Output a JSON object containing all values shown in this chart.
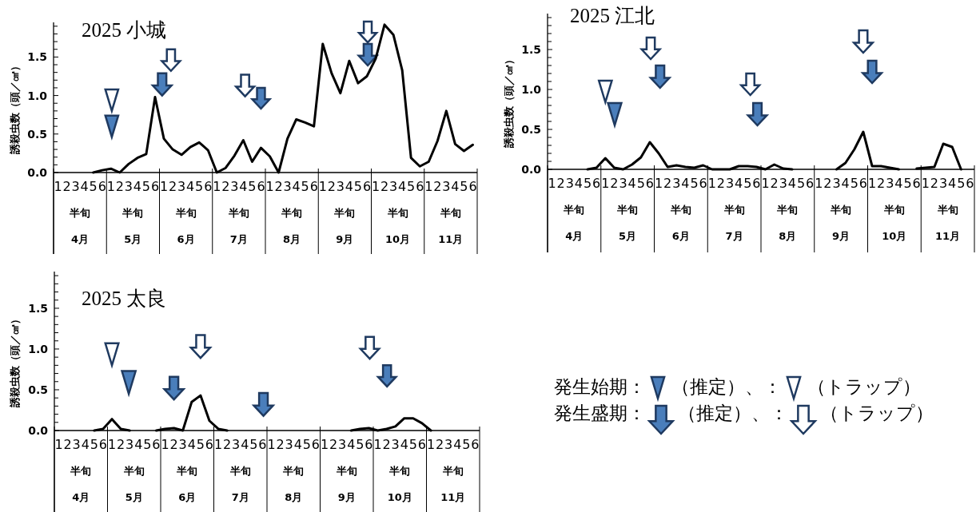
{
  "chart_data": [
    {
      "type": "line",
      "title": "2025 小城",
      "ylabel": "誘殺虫数（頭／㎠）",
      "categories": [
        "1",
        "2",
        "3",
        "4",
        "5",
        "6",
        "1",
        "2",
        "3",
        "4",
        "5",
        "6",
        "1",
        "2",
        "3",
        "4",
        "5",
        "6",
        "1",
        "2",
        "3",
        "4",
        "5",
        "6",
        "1",
        "2",
        "3",
        "4",
        "5",
        "6",
        "1",
        "2",
        "3",
        "4",
        "5",
        "6",
        "1",
        "2",
        "3",
        "4",
        "5",
        "6",
        "1",
        "2",
        "3",
        "4",
        "5",
        "6"
      ],
      "annotations": [
        "半旬",
        "半旬",
        "半旬",
        "半旬",
        "半旬",
        "半旬",
        "半旬",
        "半旬",
        "4月",
        "5月",
        "6月",
        "7月",
        "8月",
        "9月",
        "10月",
        "11月"
      ],
      "series": [
        {
          "color": "#000000",
          "values": [
            null,
            null,
            null,
            null,
            0,
            0.03,
            0.05,
            0,
            0.11,
            0.19,
            0.24,
            0.98,
            0.44,
            0.3,
            0.23,
            0.33,
            0.39,
            0.29,
            0,
            0.06,
            0.22,
            0.42,
            0.14,
            0.32,
            0.21,
            0,
            0.44,
            0.69,
            0.65,
            0.6,
            1.67,
            1.29,
            1.03,
            1.45,
            1.16,
            1.25,
            1.48,
            1.92,
            1.79,
            1.33,
            0.19,
            0.08,
            0.14,
            0.41,
            0.8,
            0.37,
            0.28,
            0.36
          ]
        }
      ],
      "ylim": [
        0,
        1.95
      ],
      "yticks": [
        {
          "value": 0,
          "label": "0.0"
        },
        {
          "value": 0.1,
          "label": null
        },
        {
          "value": 0.2,
          "label": null
        },
        {
          "value": 0.3,
          "label": null
        },
        {
          "value": 0.4,
          "label": null
        },
        {
          "value": 0.5,
          "label": "0.5"
        },
        {
          "value": 0.6,
          "label": null
        },
        {
          "value": 0.7,
          "label": null
        },
        {
          "value": 0.8,
          "label": null
        },
        {
          "value": 0.9,
          "label": null
        },
        {
          "value": 1.0,
          "label": "1.0"
        },
        {
          "value": 1.1,
          "label": null
        },
        {
          "value": 1.2,
          "label": null
        },
        {
          "value": 1.3,
          "label": null
        },
        {
          "value": 1.4,
          "label": null
        },
        {
          "value": 1.5,
          "label": "1.5"
        },
        {
          "value": 1.6,
          "label": null
        },
        {
          "value": 1.7,
          "label": null
        },
        {
          "value": 1.8,
          "label": null
        },
        {
          "value": 1.9,
          "label": null
        }
      ]
    },
    {
      "type": "line",
      "title": "2025 江北",
      "ylabel": "誘殺虫数（頭／㎠）",
      "categories": [
        "1",
        "2",
        "3",
        "4",
        "5",
        "6",
        "1",
        "2",
        "3",
        "4",
        "5",
        "6",
        "1",
        "2",
        "3",
        "4",
        "5",
        "6",
        "1",
        "2",
        "3",
        "4",
        "5",
        "6",
        "1",
        "2",
        "3",
        "4",
        "5",
        "6",
        "1",
        "2",
        "3",
        "4",
        "5",
        "6",
        "1",
        "2",
        "3",
        "4",
        "5",
        "6",
        "1",
        "2",
        "3",
        "4",
        "5",
        "6"
      ],
      "annotations": [
        "半旬",
        "半旬",
        "半旬",
        "半旬",
        "半旬",
        "半旬",
        "半旬",
        "半旬",
        "4月",
        "5月",
        "6月",
        "7月",
        "8月",
        "9月",
        "10月",
        "11月"
      ],
      "series": [
        {
          "color": "#000000",
          "values": [
            null,
            null,
            null,
            null,
            0,
            0.02,
            0.14,
            0.02,
            0,
            0.06,
            0.15,
            0.34,
            0.2,
            0.03,
            0.05,
            0.03,
            0.02,
            0.05,
            0,
            0,
            0,
            0.04,
            0.04,
            0.03,
            0,
            0.06,
            0.01,
            0,
            null,
            null,
            null,
            null,
            0,
            0.08,
            0.25,
            0.47,
            0.04,
            0.04,
            0.02,
            0,
            null,
            0.01,
            0.02,
            0.03,
            0.32,
            0.28,
            0,
            null
          ]
        }
      ],
      "ylim": [
        0,
        1.95
      ],
      "yticks": [
        {
          "value": 0,
          "label": "0.0"
        },
        {
          "value": 0.1,
          "label": null
        },
        {
          "value": 0.2,
          "label": null
        },
        {
          "value": 0.3,
          "label": null
        },
        {
          "value": 0.4,
          "label": null
        },
        {
          "value": 0.5,
          "label": "0.5"
        },
        {
          "value": 0.6,
          "label": null
        },
        {
          "value": 0.7,
          "label": null
        },
        {
          "value": 0.8,
          "label": null
        },
        {
          "value": 0.9,
          "label": null
        },
        {
          "value": 1.0,
          "label": "1.0"
        },
        {
          "value": 1.1,
          "label": null
        },
        {
          "value": 1.2,
          "label": null
        },
        {
          "value": 1.3,
          "label": null
        },
        {
          "value": 1.4,
          "label": null
        },
        {
          "value": 1.5,
          "label": "1.5"
        },
        {
          "value": 1.6,
          "label": null
        },
        {
          "value": 1.7,
          "label": null
        },
        {
          "value": 1.8,
          "label": null
        },
        {
          "value": 1.9,
          "label": null
        }
      ]
    },
    {
      "type": "line",
      "title": "2025 太良",
      "ylabel": "誘殺虫数（頭／㎠）",
      "categories": [
        "1",
        "2",
        "3",
        "4",
        "5",
        "6",
        "1",
        "2",
        "3",
        "4",
        "5",
        "6",
        "1",
        "2",
        "3",
        "4",
        "5",
        "6",
        "1",
        "2",
        "3",
        "4",
        "5",
        "6",
        "1",
        "2",
        "3",
        "4",
        "5",
        "6",
        "1",
        "2",
        "3",
        "4",
        "5",
        "6",
        "1",
        "2",
        "3",
        "4",
        "5",
        "6",
        "1",
        "2",
        "3",
        "4",
        "5",
        "6"
      ],
      "annotations": [
        "半旬",
        "半旬",
        "半旬",
        "半旬",
        "半旬",
        "半旬",
        "半旬",
        "半旬",
        "4月",
        "5月",
        "6月",
        "7月",
        "8月",
        "9月",
        "10月",
        "11月"
      ],
      "series": [
        {
          "color": "#000000",
          "values": [
            null,
            null,
            null,
            null,
            0,
            0.02,
            0.14,
            0.02,
            0,
            null,
            null,
            0,
            0.02,
            0.03,
            0,
            0.35,
            0.43,
            0.12,
            0.02,
            0,
            null,
            null,
            null,
            null,
            null,
            null,
            null,
            null,
            null,
            null,
            null,
            null,
            null,
            0,
            0.02,
            0.03,
            0,
            0.02,
            0.05,
            0.15,
            0.15,
            0.09,
            0,
            null,
            null,
            null,
            null,
            null
          ]
        }
      ],
      "ylim": [
        0,
        1.95
      ],
      "yticks": [
        {
          "value": 0,
          "label": "0.0"
        },
        {
          "value": 0.1,
          "label": null
        },
        {
          "value": 0.2,
          "label": null
        },
        {
          "value": 0.3,
          "label": null
        },
        {
          "value": 0.4,
          "label": null
        },
        {
          "value": 0.5,
          "label": "0.5"
        },
        {
          "value": 0.6,
          "label": null
        },
        {
          "value": 0.7,
          "label": null
        },
        {
          "value": 0.8,
          "label": null
        },
        {
          "value": 0.9,
          "label": null
        },
        {
          "value": 1.0,
          "label": "1.0"
        },
        {
          "value": 1.1,
          "label": null
        },
        {
          "value": 1.2,
          "label": null
        },
        {
          "value": 1.3,
          "label": null
        },
        {
          "value": 1.4,
          "label": null
        },
        {
          "value": 1.5,
          "label": "1.5"
        },
        {
          "value": 1.6,
          "label": null
        },
        {
          "value": 1.7,
          "label": null
        },
        {
          "value": 1.8,
          "label": null
        },
        {
          "value": 1.9,
          "label": null
        }
      ]
    },
    {
      "type": "other",
      "annotations": [
        "発生始期：",
        "（推定）、：",
        "（トラップ）",
        "発生盛期：",
        "（推定）、：",
        "（トラップ）"
      ]
    }
  ]
}
